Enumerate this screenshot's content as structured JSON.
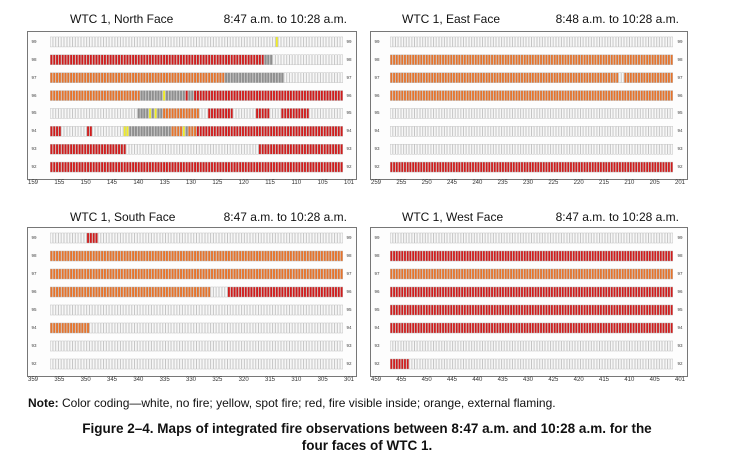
{
  "colors": {
    "white": "#f7f7f7",
    "yellow": "#f2ee27",
    "red": "#d21b1b",
    "orange": "#e8732a",
    "gray": "#8e8e8e",
    "cell_border": "#b7b7b7"
  },
  "state_codes": {
    "0": "white",
    "1": "yellow",
    "2": "red",
    "3": "orange",
    "4": "gray"
  },
  "panels": [
    {
      "id": "north",
      "title": "WTC 1, North Face",
      "range": "8:47 a.m. to 10:28 a.m.",
      "floors": [
        "99",
        "98",
        "97",
        "96",
        "95",
        "94",
        "93",
        "92"
      ],
      "col_labels": [
        "159",
        "155",
        "150",
        "145",
        "140",
        "135",
        "130",
        "125",
        "120",
        "115",
        "110",
        "105",
        "101"
      ],
      "rows": [
        "00000000000000000000000000000000000000000000000000000000000000000000000000000000100000000000000000000000",
        "22222222222222222222222222222222222222222222222222222222222222222222222222224440000000000000000000000000",
        "33333333333333333333333333333333333333333333333333333333333333444444444444444444444000000000000000000000",
        "33333333333333333333333333333333444444441444444424422222222222222222222222222222222222222222222222222222",
        "00000000000000000000000000000004444141443333333333333000222222222000000002222200002222222222000000000000",
        "22220000000002200000000000114444444444444443333143332222222222222222222222222222222222222222222222222222",
        "22222222222222222222222222200000000000000000000000000000000000000000000000222222222222222222222222222222",
        "22222222222222222222222222222222222222222222222222222222222222222222222222222222222222222222222222222222"
      ]
    },
    {
      "id": "east",
      "title": "WTC 1, East Face",
      "range": "8:48 a.m. to 10:28 a.m.",
      "floors": [
        "99",
        "98",
        "97",
        "96",
        "95",
        "94",
        "93",
        "92"
      ],
      "col_labels": [
        "259",
        "255",
        "250",
        "245",
        "240",
        "235",
        "230",
        "225",
        "220",
        "215",
        "210",
        "205",
        "201"
      ],
      "rows": [
        "00000000000000000000000000000000000000000000000000000000000000000000000000000000000000000000000000000000",
        "33333333333333333333333333333333333333333333333333333333333333333333333333333333333333333333333333333333",
        "33333333333333333333333333333333333333333333333333333333333333333333333333333333333300333333333333333333",
        "33333333333333333333333333333333333333333333333333333333333333333333333333333333333333333333333333333333",
        "00000000000000000000000000000000000000000000000000000000000000000000000000000000000000000000000000000000",
        "00000000000000000000000000000000000000000000000000000000000000000000000000000000000000000000000000000000",
        "00000000000000000000000000000000000000000000000000000000000000000000000000000000000000000000000000000000",
        "22222222222222222222222222222222222222222222222222222222222222222222222222222222222222222222222222222222"
      ]
    },
    {
      "id": "south",
      "title": "WTC 1, South Face",
      "range": "8:47 a.m. to 10:28 a.m.",
      "floors": [
        "99",
        "98",
        "97",
        "96",
        "95",
        "94",
        "93",
        "92"
      ],
      "col_labels": [
        "359",
        "355",
        "350",
        "345",
        "340",
        "335",
        "330",
        "325",
        "320",
        "315",
        "310",
        "305",
        "301"
      ],
      "rows": [
        "00000000000002222000000000000000000000000000000000000000000000000000000000000000000000000000000000000000",
        "33333333333333333333333333333333333333333333333333333333333333333333333333333333333333333333333333333333",
        "33333333333333333333333333333333333333333333333333333333333333333333333333333333333333333333333333333333",
        "33333333333333333333333333333333333333333333333333333333300000022222222222222222222222222222222222222222",
        "00000000000000000000000000000000000000000000000000000000000000000000000000000000000000000000000000000000",
        "33333333333333000000000000000000000000000000000000000000000000000000000000000000000000000000000000000000",
        "00000000000000000000000000000000000000000000000000000000000000000000000000000000000000000000000000000000",
        "00000000000000000000000000000000000000000000000000000000000000000000000000000000000000000000000000000000"
      ]
    },
    {
      "id": "west",
      "title": "WTC 1, West Face",
      "range": "8:47 a.m. to 10:28 a.m.",
      "floors": [
        "99",
        "98",
        "97",
        "96",
        "95",
        "94",
        "93",
        "92"
      ],
      "col_labels": [
        "459",
        "455",
        "450",
        "445",
        "440",
        "435",
        "430",
        "425",
        "420",
        "415",
        "410",
        "405",
        "401"
      ],
      "rows": [
        "00000000000000000000000000000000000000000000000000000000000000000000000000000000000000000000000000000000",
        "22222222222222222222222222222222222222222222222222222222222222222222222222222222222222222222222222222222",
        "33333333333333333333333333333333333333333333333333333333333333333333333333333333333333333333333333333333",
        "22222222222222222222222222222222222222222222222222222222222222222222222222222222222222222222222222222222",
        "22222222222222222222222222222222222222222222222222222222222222222222222222222222222222222222222222222222",
        "22222222222222222222222222222222222222222222222222222222222222222222222222222222222222222222222222222222",
        "00000000000000000000000000000000000000000000000000000000000000000000000000000000000000000000000000000000",
        "22222220000000000000000000000000000000000000000000000000000000000000000000000000000000000000000000000000"
      ]
    }
  ],
  "note": {
    "label": "Note:",
    "text": " Color coding—white, no fire; yellow, spot fire; red, fire visible inside; orange, external flaming."
  },
  "caption": {
    "line1": "Figure 2–4.  Maps of integrated fire observations between 8:47 a.m. and 10:28 a.m. for the",
    "line2": "four faces of WTC 1."
  }
}
